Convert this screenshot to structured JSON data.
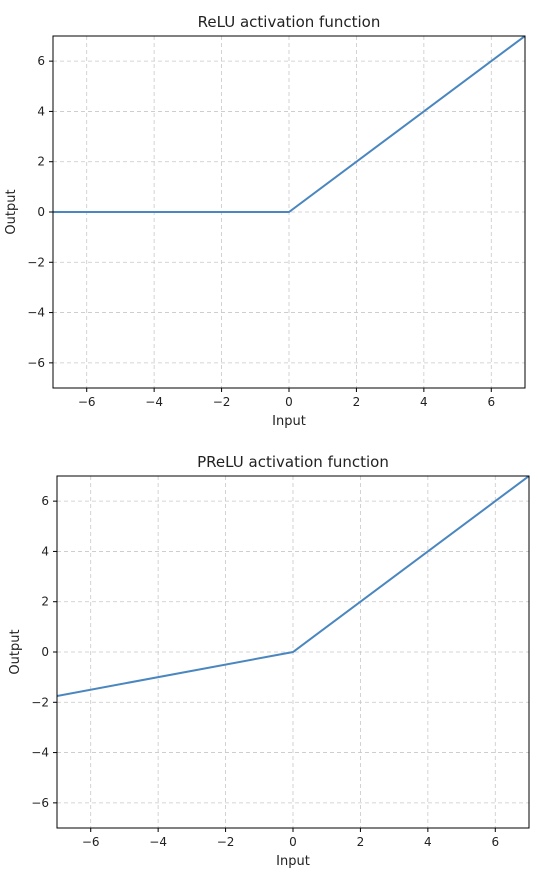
{
  "chart_data": [
    {
      "type": "line",
      "title": "ReLU activation function",
      "xlabel": "Input",
      "ylabel": "Output",
      "xlim": [
        -7,
        7
      ],
      "ylim": [
        -7,
        7
      ],
      "xticks": [
        -6,
        -4,
        -2,
        0,
        2,
        4,
        6
      ],
      "yticks": [
        -6,
        -4,
        -2,
        0,
        2,
        4,
        6
      ],
      "grid": true,
      "line_color": "#4a86bf",
      "series": [
        {
          "x": [
            -7,
            0,
            7
          ],
          "y": [
            0,
            0,
            7
          ]
        }
      ]
    },
    {
      "type": "line",
      "title": "PReLU activation function",
      "xlabel": "Input",
      "ylabel": "Output",
      "xlim": [
        -7,
        7
      ],
      "ylim": [
        -7,
        7
      ],
      "xticks": [
        -6,
        -4,
        -2,
        0,
        2,
        4,
        6
      ],
      "yticks": [
        -6,
        -4,
        -2,
        0,
        2,
        4,
        6
      ],
      "grid": true,
      "line_color": "#4a86bf",
      "series": [
        {
          "x": [
            -7,
            0,
            7
          ],
          "y": [
            -1.75,
            0,
            7
          ]
        }
      ]
    }
  ]
}
